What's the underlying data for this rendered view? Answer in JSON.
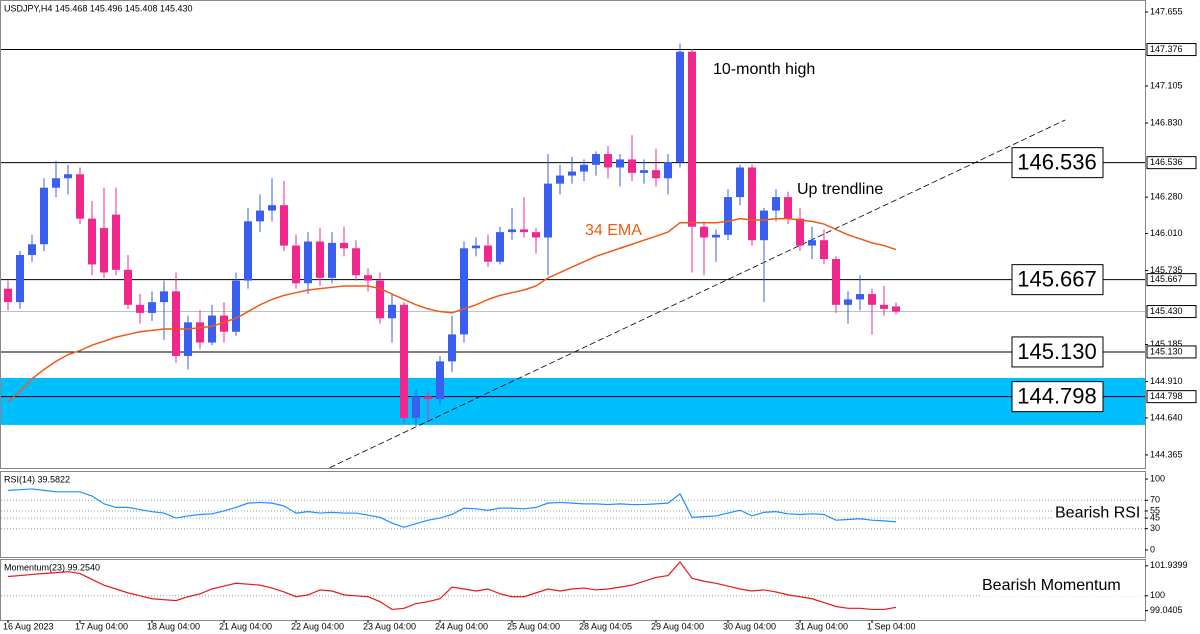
{
  "chart_data": [
    {
      "type": "candlestick",
      "title": "USDJPY,H4  145.468 145.496 145.408 145.430",
      "categories": [
        "16 Aug 2023",
        null,
        null,
        null,
        null,
        null,
        "17 Aug 04:00",
        null,
        null,
        null,
        null,
        null,
        "18 Aug 04:00",
        null,
        null,
        null,
        null,
        null,
        "21 Aug 04:00",
        null,
        null,
        null,
        null,
        null,
        "22 Aug 04:00",
        null,
        null,
        null,
        null,
        null,
        "23 Aug 04:00",
        null,
        null,
        null,
        null,
        null,
        "24 Aug 04:00",
        null,
        null,
        null,
        null,
        null,
        "25 Aug 04:00",
        null,
        null,
        null,
        null,
        null,
        "28 Aug 04:05",
        null,
        null,
        null,
        null,
        null,
        "29 Aug 04:00",
        null,
        null,
        null,
        null,
        null,
        "30 Aug 04:00",
        null,
        null,
        null,
        null,
        null,
        "31 Aug 04:00",
        null,
        null,
        null,
        null,
        null,
        "1 Sep 04:00",
        null,
        null
      ],
      "open": [
        145.6,
        145.5,
        145.85,
        145.93,
        146.35,
        146.42,
        146.45,
        146.12,
        146.05,
        146.15,
        145.74,
        145.48,
        145.42,
        145.5,
        145.58,
        145.1,
        145.35,
        145.2,
        145.4,
        145.28,
        145.66,
        146.1,
        146.18,
        146.22,
        145.92,
        145.64,
        145.95,
        145.68,
        145.94,
        145.9,
        145.7,
        145.66,
        145.38,
        145.48,
        144.64,
        144.8,
        144.78,
        145.06,
        145.26,
        145.9,
        145.92,
        145.8,
        146.02,
        146.04,
        146.02,
        145.98,
        146.38,
        146.44,
        146.47,
        146.52,
        146.6,
        146.5,
        146.56,
        146.46,
        146.48,
        146.42,
        146.54,
        147.36,
        146.06,
        145.98,
        146.0,
        146.28,
        146.5,
        145.96,
        146.18,
        146.28,
        146.12,
        145.92,
        145.96,
        145.82,
        145.48,
        145.52,
        145.56,
        145.48,
        145.468
      ],
      "high": [
        145.66,
        145.88,
        146.0,
        146.42,
        146.55,
        146.52,
        146.5,
        146.25,
        146.35,
        146.35,
        145.85,
        145.56,
        145.58,
        145.66,
        145.72,
        145.4,
        145.44,
        145.48,
        145.5,
        145.72,
        146.2,
        146.3,
        146.42,
        146.4,
        146.0,
        146.02,
        146.05,
        146.02,
        146.06,
        145.96,
        145.75,
        145.72,
        145.56,
        145.5,
        144.85,
        144.84,
        145.1,
        145.4,
        145.95,
        145.98,
        146.0,
        146.06,
        146.2,
        146.28,
        146.05,
        146.6,
        146.52,
        146.58,
        146.56,
        146.62,
        146.66,
        146.6,
        146.74,
        146.56,
        146.64,
        146.6,
        147.42,
        147.38,
        146.1,
        146.04,
        146.34,
        146.52,
        146.52,
        146.2,
        146.34,
        146.32,
        146.2,
        146.06,
        146.04,
        145.84,
        145.58,
        145.7,
        145.6,
        145.62,
        145.496
      ],
      "low": [
        145.44,
        145.45,
        145.8,
        145.88,
        146.28,
        146.3,
        146.08,
        145.7,
        145.68,
        145.7,
        145.45,
        145.34,
        145.36,
        145.22,
        145.05,
        145.0,
        145.15,
        145.18,
        145.2,
        145.25,
        145.6,
        146.02,
        146.1,
        145.88,
        145.6,
        145.56,
        145.62,
        145.64,
        145.84,
        145.66,
        145.58,
        145.34,
        145.2,
        144.6,
        144.58,
        144.62,
        144.74,
        144.98,
        145.2,
        145.84,
        145.76,
        145.78,
        145.96,
        145.98,
        145.86,
        145.7,
        146.3,
        146.38,
        146.4,
        146.44,
        146.42,
        146.36,
        146.4,
        146.38,
        146.36,
        146.3,
        146.5,
        145.72,
        145.7,
        145.8,
        145.96,
        146.22,
        145.92,
        145.5,
        146.1,
        146.08,
        145.88,
        145.82,
        145.78,
        145.42,
        145.34,
        145.44,
        145.26,
        145.4,
        145.408
      ],
      "close": [
        145.5,
        145.85,
        145.93,
        146.35,
        146.42,
        146.45,
        146.12,
        145.78,
        145.72,
        145.74,
        145.48,
        145.42,
        145.5,
        145.58,
        145.1,
        145.35,
        145.2,
        145.4,
        145.28,
        145.66,
        146.1,
        146.18,
        146.22,
        145.92,
        145.64,
        145.95,
        145.68,
        145.94,
        145.9,
        145.7,
        145.66,
        145.38,
        145.48,
        144.64,
        144.8,
        144.78,
        145.06,
        145.26,
        145.9,
        145.92,
        145.8,
        146.02,
        146.04,
        146.02,
        145.98,
        146.38,
        146.44,
        146.47,
        146.52,
        146.6,
        146.5,
        146.56,
        146.46,
        146.48,
        146.42,
        146.54,
        147.36,
        146.06,
        145.98,
        146.0,
        146.28,
        146.5,
        145.96,
        146.18,
        146.28,
        146.12,
        145.92,
        145.96,
        145.82,
        145.48,
        145.52,
        145.56,
        145.48,
        145.45,
        145.43
      ],
      "up_color": "#3a5ef0",
      "down_color": "#f0288c",
      "ema": {
        "name": "34 EMA",
        "color": "#f05a14",
        "values": [
          144.76,
          144.84,
          144.93,
          145.0,
          145.06,
          145.11,
          145.14,
          145.18,
          145.21,
          145.24,
          145.26,
          145.28,
          145.29,
          145.3,
          145.3,
          145.3,
          145.31,
          145.32,
          145.35,
          145.38,
          145.43,
          145.48,
          145.52,
          145.55,
          145.57,
          145.59,
          145.6,
          145.61,
          145.62,
          145.62,
          145.62,
          145.6,
          145.56,
          145.52,
          145.48,
          145.45,
          145.43,
          145.42,
          145.45,
          145.48,
          145.52,
          145.55,
          145.57,
          145.59,
          145.62,
          145.68,
          145.72,
          145.76,
          145.8,
          145.84,
          145.87,
          145.9,
          145.93,
          145.96,
          145.99,
          146.02,
          146.09,
          146.09,
          146.09,
          146.09,
          146.1,
          146.12,
          146.11,
          146.11,
          146.12,
          146.12,
          146.11,
          146.1,
          146.08,
          146.04,
          146.0,
          145.97,
          145.94,
          145.92,
          145.89
        ]
      },
      "ylim": [
        144.268,
        147.744
      ],
      "yticks": [
        147.655,
        147.105,
        {
          "value": 146.83,
          "label": "146.830"
        },
        {
          "value": 146.28,
          "label": "146.280"
        },
        {
          "value": 146.01,
          "label": "146.010"
        },
        145.735,
        145.185,
        {
          "value": 144.91,
          "label": "144.910"
        },
        {
          "value": 144.64,
          "label": "144.640"
        },
        144.365
      ],
      "levels": [
        {
          "value": 147.376,
          "label": "147.376",
          "callout": false
        },
        {
          "value": 146.536,
          "label": "146.536",
          "callout": true
        },
        {
          "value": 145.667,
          "label": "145.667",
          "callout": true
        },
        {
          "value": 145.13,
          "label": "145.130",
          "callout": true
        },
        {
          "value": 144.798,
          "label": "144.798",
          "callout": true
        }
      ],
      "current_price": {
        "value": 145.43,
        "label": "145.430"
      },
      "zone": [
        144.588,
        144.937
      ],
      "zone_color": "#00bfff",
      "trendline": {
        "label": "Up trendline",
        "points": [
          {
            "x": 26.8,
            "y": 144.27
          },
          {
            "x": 88.1,
            "y": 146.853
          }
        ]
      },
      "annotations": [
        "10-month high"
      ]
    },
    {
      "type": "line",
      "title": "RSI(14) 39.5822",
      "series": [
        {
          "color": "#1e90ff",
          "values": [
            84,
            85,
            86,
            84,
            82,
            82,
            82,
            76,
            65,
            60,
            60,
            57,
            54,
            52,
            45,
            48,
            50,
            51,
            55,
            60,
            66,
            67,
            66,
            62,
            52,
            54,
            52,
            53,
            52,
            52,
            49,
            46,
            38,
            32,
            37,
            42,
            45,
            50,
            59,
            58,
            56,
            59,
            59,
            58,
            60,
            66,
            67,
            66,
            65,
            65,
            64,
            65,
            64,
            64,
            65,
            66,
            79,
            46,
            47,
            48,
            52,
            56,
            48,
            53,
            54,
            51,
            50,
            51,
            50,
            42,
            43,
            44,
            42,
            41,
            39.5822
          ]
        }
      ],
      "ylim": [
        -9.9,
        109.9
      ],
      "yticks": [
        100,
        70,
        55,
        45,
        30,
        0
      ],
      "levels": [
        70,
        55,
        45,
        30
      ],
      "annotations": [
        "Bearish RSI"
      ]
    },
    {
      "type": "line",
      "title": "Momentum(23) 99.2540",
      "series": [
        {
          "color": "#e81818",
          "values": [
            101.25,
            101.31,
            101.38,
            101.44,
            101.5,
            101.56,
            101.44,
            101.06,
            100.69,
            100.44,
            100.19,
            100.0,
            99.81,
            99.75,
            99.69,
            99.94,
            100.13,
            100.44,
            100.63,
            100.81,
            100.75,
            100.69,
            100.5,
            100.25,
            99.94,
            100.06,
            100.38,
            100.31,
            100.06,
            100.0,
            99.94,
            99.62,
            99.12,
            99.19,
            99.5,
            99.62,
            99.81,
            100.56,
            100.44,
            100.31,
            100.44,
            100.13,
            99.94,
            99.94,
            100.19,
            100.44,
            100.31,
            100.44,
            100.5,
            100.38,
            100.44,
            100.56,
            100.69,
            100.94,
            101.19,
            101.31,
            102.19,
            101.13,
            100.94,
            100.81,
            100.63,
            100.44,
            100.31,
            100.38,
            100.25,
            100.06,
            99.94,
            99.81,
            99.56,
            99.31,
            99.19,
            99.19,
            99.12,
            99.12,
            99.254
          ]
        }
      ],
      "ylim": [
        98.436,
        102.315
      ],
      "yticks": [
        101.9399,
        100,
        99.0405
      ],
      "levels": [
        100
      ],
      "annotations": [
        "Bearish Momentum"
      ]
    }
  ]
}
